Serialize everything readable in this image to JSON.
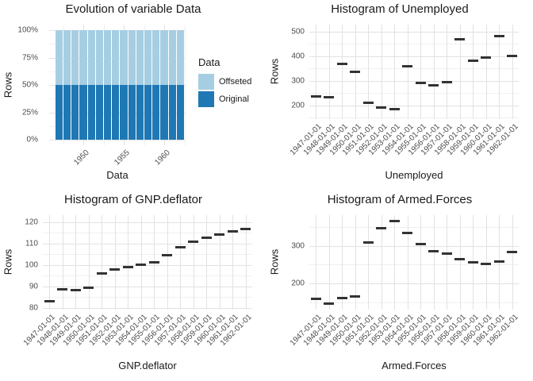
{
  "theme": {
    "background": "#ffffff",
    "grid_major_color": "#e2e2e2",
    "grid_minor_color": "#f0f0f0",
    "tick_text_color": "#4d4d4d",
    "title_text_color": "#1a1a1a",
    "dash_mark_color": "#333333",
    "bar_light_blue": "#a6cee3",
    "bar_dark_blue": "#1f78b4"
  },
  "chart_data": [
    {
      "type": "bar",
      "subtype": "stacked-percent",
      "title": "Evolution of variable Data",
      "xlabel": "Data",
      "ylabel": "Rows",
      "years": [
        1947,
        1948,
        1949,
        1950,
        1951,
        1952,
        1953,
        1954,
        1955,
        1956,
        1957,
        1958,
        1959,
        1960,
        1961,
        1962
      ],
      "series": [
        {
          "name": "Offseted",
          "color": "#a6cee3",
          "percent_each_bar": 50
        },
        {
          "name": "Original",
          "color": "#1f78b4",
          "percent_each_bar": 50
        }
      ],
      "y_tick_labels": [
        "0%",
        "25%",
        "50%",
        "75%",
        "100%"
      ],
      "y_tick_values": [
        0,
        25,
        50,
        75,
        100
      ],
      "y_minor_values": [
        12.5,
        37.5,
        62.5,
        87.5
      ],
      "x_tick_labels": [
        "1950",
        "1955",
        "1960"
      ],
      "x_tick_years": [
        1950,
        1955,
        1960
      ],
      "x_minor_years": [
        1947.5,
        1952.5,
        1957.5,
        1962.5
      ],
      "ylim": [
        0,
        100
      ],
      "legend": {
        "title": "Data",
        "items": [
          {
            "label": "Offseted",
            "color": "#a6cee3"
          },
          {
            "label": "Original",
            "color": "#1f78b4"
          }
        ]
      }
    },
    {
      "type": "scatter",
      "subtype": "dash-marks",
      "title": "Histogram of Unemployed",
      "xlabel": "Unemployed",
      "ylabel": "Rows",
      "categories": [
        "1947-01-01",
        "1948-01-01",
        "1949-01-01",
        "1950-01-01",
        "1951-01-01",
        "1952-01-01",
        "1953-01-01",
        "1954-01-01",
        "1955-01-01",
        "1956-01-01",
        "1957-01-01",
        "1958-01-01",
        "1959-01-01",
        "1960-01-01",
        "1961-01-01",
        "1962-01-01"
      ],
      "values": [
        235.6,
        232.5,
        368.2,
        335.1,
        209.9,
        193.2,
        187.0,
        357.8,
        290.4,
        282.2,
        293.6,
        468.1,
        381.3,
        393.1,
        480.6,
        400.7
      ],
      "y_ticks": [
        200,
        300,
        400,
        500
      ],
      "y_minor": [
        150,
        250,
        350,
        450
      ],
      "ylim": [
        145,
        528
      ],
      "grid": true,
      "legend": null
    },
    {
      "type": "scatter",
      "subtype": "dash-marks",
      "title": "Histogram of GNP.deflator",
      "xlabel": "GNP.deflator",
      "ylabel": "Rows",
      "categories": [
        "1947-01-01",
        "1948-01-01",
        "1949-01-01",
        "1950-01-01",
        "1951-01-01",
        "1952-01-01",
        "1953-01-01",
        "1954-01-01",
        "1955-01-01",
        "1956-01-01",
        "1957-01-01",
        "1958-01-01",
        "1959-01-01",
        "1960-01-01",
        "1961-01-01",
        "1962-01-01"
      ],
      "values": [
        83.0,
        88.5,
        88.2,
        89.5,
        96.2,
        98.1,
        99.0,
        100.0,
        101.2,
        104.6,
        108.4,
        110.8,
        112.6,
        114.2,
        115.7,
        116.9
      ],
      "y_ticks": [
        80,
        90,
        100,
        110,
        120
      ],
      "y_minor": [
        85,
        95,
        105,
        115
      ],
      "ylim": [
        79.2,
        123.3
      ],
      "grid": true,
      "legend": null
    },
    {
      "type": "scatter",
      "subtype": "dash-marks",
      "title": "Histogram of Armed.Forces",
      "xlabel": "Armed.Forces",
      "ylabel": "Rows",
      "categories": [
        "1947-01-01",
        "1948-01-01",
        "1949-01-01",
        "1950-01-01",
        "1951-01-01",
        "1952-01-01",
        "1953-01-01",
        "1954-01-01",
        "1955-01-01",
        "1956-01-01",
        "1957-01-01",
        "1958-01-01",
        "1959-01-01",
        "1960-01-01",
        "1961-01-01",
        "1962-01-01"
      ],
      "values": [
        159.0,
        145.6,
        161.6,
        165.0,
        309.9,
        346.6,
        365.4,
        335.2,
        304.8,
        285.7,
        279.8,
        263.7,
        255.2,
        251.4,
        257.2,
        282.7
      ],
      "y_ticks": [
        200,
        300
      ],
      "y_minor": [
        150,
        250,
        350
      ],
      "ylim": [
        130,
        382
      ],
      "grid": true,
      "legend": null
    }
  ]
}
